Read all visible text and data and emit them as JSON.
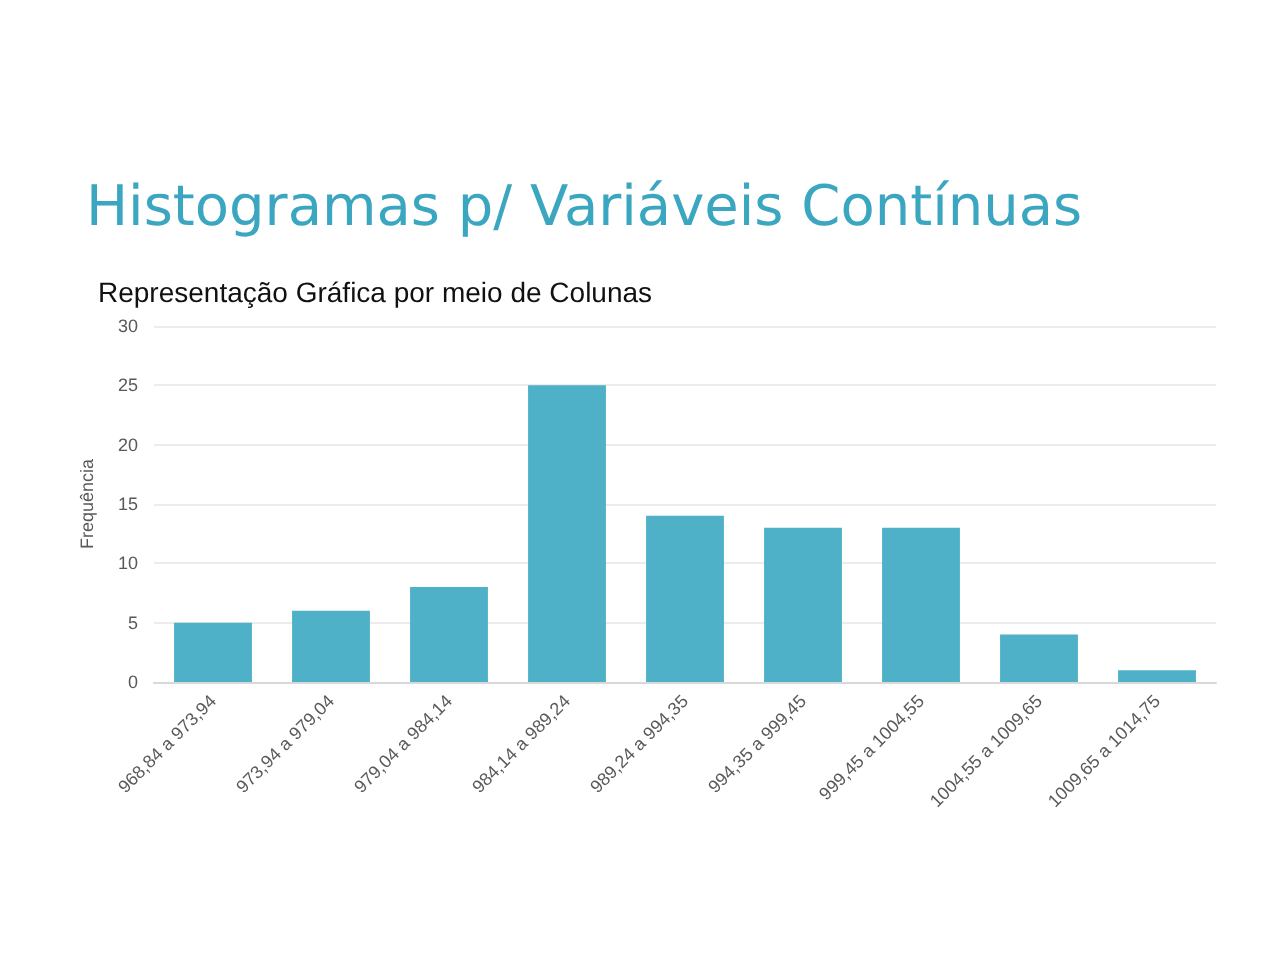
{
  "chart_data": {
    "type": "bar",
    "title": "Histogramas p/ Variáveis Contínuas",
    "subtitle": "Representação Gráfica por meio de Colunas",
    "ylabel": "Frequência",
    "categories": [
      "968,84 a 973,94",
      "973,94 a 979,04",
      "979,04 a 984,14",
      "984,14 a 989,24",
      "989,24 a 994,35",
      "994,35 a 999,45",
      "999,45 a 1004,55",
      "1004,55 a 1009,65",
      "1009,65 a 1014,75"
    ],
    "values": [
      5,
      6,
      8,
      25,
      14,
      13,
      13,
      4,
      1
    ],
    "color": "#4fb1c8",
    "ylim": [
      0,
      30
    ],
    "yticks": [
      0,
      5,
      10,
      15,
      20,
      25,
      30
    ],
    "grid": "y"
  }
}
